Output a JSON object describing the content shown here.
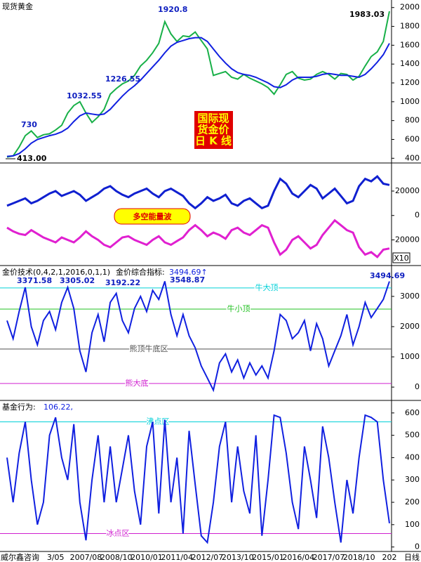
{
  "chart_data": [
    {
      "type": "line",
      "title": "现货黄金",
      "annotations": [
        "730",
        "1032.55",
        "1226.55",
        "1920.8",
        "1983.03",
        "413.00"
      ],
      "box_text": [
        "国际现",
        "货金价",
        "日 K 线"
      ],
      "ylim": [
        350,
        2080
      ],
      "yticks": [
        400,
        600,
        800,
        1000,
        1200,
        1400,
        1600,
        1800,
        2000
      ],
      "series": [
        {
          "name": "close",
          "color": "#18b048",
          "values": [
            413,
            425,
            520,
            640,
            690,
            620,
            650,
            660,
            700,
            750,
            880,
            960,
            1000,
            880,
            780,
            840,
            920,
            1080,
            1140,
            1190,
            1220,
            1280,
            1380,
            1440,
            1520,
            1620,
            1850,
            1720,
            1640,
            1700,
            1690,
            1740,
            1650,
            1560,
            1280,
            1300,
            1320,
            1260,
            1240,
            1290,
            1250,
            1220,
            1190,
            1150,
            1080,
            1180,
            1290,
            1320,
            1250,
            1230,
            1240,
            1290,
            1320,
            1290,
            1240,
            1300,
            1290,
            1230,
            1270,
            1380,
            1480,
            1530,
            1640,
            1960
          ]
        },
        {
          "name": "MA",
          "color": "#1020e0",
          "values": [
            420,
            425,
            450,
            500,
            560,
            600,
            620,
            640,
            655,
            680,
            720,
            790,
            850,
            880,
            870,
            860,
            870,
            920,
            990,
            1060,
            1120,
            1170,
            1230,
            1300,
            1370,
            1440,
            1520,
            1590,
            1630,
            1650,
            1670,
            1680,
            1680,
            1640,
            1560,
            1480,
            1410,
            1350,
            1310,
            1290,
            1280,
            1260,
            1230,
            1200,
            1160,
            1150,
            1180,
            1230,
            1260,
            1260,
            1260,
            1270,
            1290,
            1300,
            1290,
            1280,
            1280,
            1270,
            1260,
            1290,
            1350,
            1420,
            1500,
            1620
          ]
        }
      ]
    },
    {
      "type": "line",
      "label": "多空能量波",
      "unit": "X10",
      "ylim": [
        -41000,
        43000
      ],
      "yticks": [
        20000,
        0,
        -20000
      ],
      "series": [
        {
          "name": "long",
          "color": "#1020d0",
          "values": [
            8000,
            10000,
            12000,
            14000,
            10000,
            12000,
            15000,
            18000,
            20000,
            16000,
            18000,
            20000,
            17000,
            12000,
            15000,
            18000,
            22000,
            24000,
            20000,
            17000,
            15000,
            18000,
            20000,
            22000,
            18000,
            15000,
            20000,
            22000,
            19000,
            16000,
            10000,
            6000,
            10000,
            15000,
            12000,
            14000,
            17000,
            10000,
            8000,
            12000,
            14000,
            10000,
            6000,
            8000,
            20000,
            30000,
            26000,
            18000,
            15000,
            20000,
            25000,
            22000,
            14000,
            18000,
            22000,
            16000,
            10000,
            12000,
            24000,
            30000,
            28000,
            32000,
            26000,
            25000
          ]
        },
        {
          "name": "short",
          "color": "#e020d0",
          "values": [
            -10000,
            -13000,
            -15000,
            -16000,
            -12000,
            -15000,
            -18000,
            -20000,
            -22000,
            -18000,
            -20000,
            -22000,
            -18000,
            -13000,
            -17000,
            -20000,
            -24000,
            -26000,
            -22000,
            -18000,
            -17000,
            -20000,
            -22000,
            -24000,
            -20000,
            -17000,
            -22000,
            -24000,
            -21000,
            -18000,
            -12000,
            -8000,
            -12000,
            -17000,
            -14000,
            -16000,
            -19000,
            -12000,
            -10000,
            -14000,
            -16000,
            -12000,
            -8000,
            -10000,
            -22000,
            -32000,
            -28000,
            -20000,
            -17000,
            -22000,
            -27000,
            -24000,
            -16000,
            -10000,
            -4000,
            -8000,
            -12000,
            -14000,
            -26000,
            -32000,
            -30000,
            -34000,
            -28000,
            -27000
          ]
        }
      ]
    },
    {
      "type": "line",
      "title": "金价技术(0,4,2,1,2016,0,1,1)",
      "indicator_label": "金价综合指标:",
      "indicator_value": "3494.69↑",
      "annotations": [
        "3371.58",
        "3305.02",
        "3192.22",
        "3548.87",
        "3494.69"
      ],
      "ylim": [
        -440,
        4020
      ],
      "yticks": [
        0,
        1000,
        2000,
        3000
      ],
      "reference_lines": [
        {
          "value": 3280,
          "label": "牛大顶",
          "color": "#00d0d8"
        },
        {
          "value": 2580,
          "label": "牛小顶",
          "color": "#20c020"
        },
        {
          "value": 1260,
          "label": "熊顶牛底区",
          "color": "#505050"
        },
        {
          "value": 120,
          "label": "熊大底",
          "color": "#d020d0"
        }
      ],
      "series": [
        {
          "name": "indicator",
          "color": "#1020e0",
          "values": [
            2200,
            1600,
            2500,
            3300,
            2000,
            1400,
            2200,
            2500,
            1900,
            2800,
            3300,
            2600,
            1200,
            500,
            1800,
            2400,
            1500,
            2800,
            3100,
            2200,
            1800,
            2600,
            3000,
            2500,
            3200,
            2900,
            3500,
            2400,
            1700,
            2400,
            1700,
            1300,
            700,
            300,
            -100,
            800,
            1100,
            500,
            900,
            300,
            800,
            400,
            700,
            300,
            1200,
            2400,
            2200,
            1600,
            1800,
            2200,
            1200,
            2100,
            1600,
            700,
            1200,
            1700,
            2400,
            1400,
            2000,
            2800,
            2300,
            2600,
            2900,
            3495
          ]
        }
      ]
    },
    {
      "type": "line",
      "title": "基金行为:",
      "indicator_value": "106.22,",
      "ylim": [
        -20,
        656
      ],
      "yticks": [
        0,
        100,
        200,
        300,
        400,
        500,
        600
      ],
      "reference_lines": [
        {
          "value": 560,
          "label": "沸点区",
          "color": "#00d0d8"
        },
        {
          "value": 60,
          "label": "冰点区",
          "color": "#d020d0"
        }
      ],
      "categories": [
        null,
        null,
        null,
        null,
        null,
        null,
        null,
        null,
        "3/05",
        null,
        null,
        null,
        null,
        "2007/08",
        null,
        null,
        null,
        null,
        "2008/10",
        null,
        null,
        null,
        null,
        "2010/01",
        null,
        null,
        null,
        null,
        "2011/04",
        null,
        null,
        null,
        null,
        "2012/07",
        null,
        null,
        null,
        null,
        "2013/10",
        null,
        null,
        null,
        null,
        "2015/01",
        null,
        null,
        null,
        null,
        "2016/04",
        null,
        null,
        null,
        null,
        "2017/07",
        null,
        null,
        null,
        null,
        "2018/10",
        null,
        null,
        null,
        null,
        "202"
      ],
      "series": [
        {
          "name": "fund",
          "color": "#1020e0",
          "values": [
            400,
            200,
            420,
            560,
            300,
            100,
            200,
            500,
            580,
            400,
            300,
            550,
            200,
            30,
            300,
            500,
            200,
            450,
            200,
            350,
            500,
            250,
            100,
            450,
            560,
            150,
            570,
            200,
            400,
            60,
            520,
            280,
            50,
            20,
            200,
            450,
            560,
            200,
            450,
            250,
            150,
            500,
            50,
            300,
            590,
            580,
            420,
            200,
            80,
            450,
            300,
            130,
            540,
            400,
            200,
            20,
            300,
            150,
            400,
            590,
            580,
            560,
            300,
            106.22
          ]
        }
      ]
    }
  ],
  "footer": {
    "source": "威尔鑫咨询",
    "period": "日线"
  }
}
